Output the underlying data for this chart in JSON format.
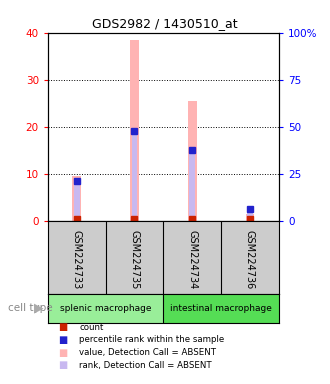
{
  "title": "GDS2982 / 1430510_at",
  "samples": [
    "GSM224733",
    "GSM224735",
    "GSM224734",
    "GSM224736"
  ],
  "cell_types": [
    {
      "label": "splenic macrophage",
      "span": [
        0,
        2
      ],
      "color": "#99ee99"
    },
    {
      "label": "intestinal macrophage",
      "span": [
        2,
        4
      ],
      "color": "#55dd55"
    }
  ],
  "value_bars": [
    9.5,
    38.5,
    25.5,
    1.5
  ],
  "rank_bars": [
    8.5,
    19.0,
    15.0,
    2.5
  ],
  "count_squares": [
    0.5,
    0.5,
    0.5,
    0.5
  ],
  "bar_color_value": "#ffb3b3",
  "bar_color_rank_absent": "#c8b8f0",
  "count_color": "#cc2200",
  "rank_marker_color": "#2222cc",
  "ylim_left": [
    0,
    40
  ],
  "ylim_right": [
    0,
    100
  ],
  "yticks_left": [
    0,
    10,
    20,
    30,
    40
  ],
  "yticks_right": [
    0,
    25,
    50,
    75,
    100
  ],
  "ytick_labels_right": [
    "0",
    "25",
    "50",
    "75",
    "100%"
  ],
  "background_color": "#ffffff",
  "plot_bg": "#ffffff",
  "cell_type_label": "cell type",
  "sample_box_color": "#cccccc",
  "legend_items": [
    {
      "color": "#cc2200",
      "label": "count"
    },
    {
      "color": "#2222cc",
      "label": "percentile rank within the sample"
    },
    {
      "color": "#ffb3b3",
      "label": "value, Detection Call = ABSENT"
    },
    {
      "color": "#c8b8f0",
      "label": "rank, Detection Call = ABSENT"
    }
  ]
}
